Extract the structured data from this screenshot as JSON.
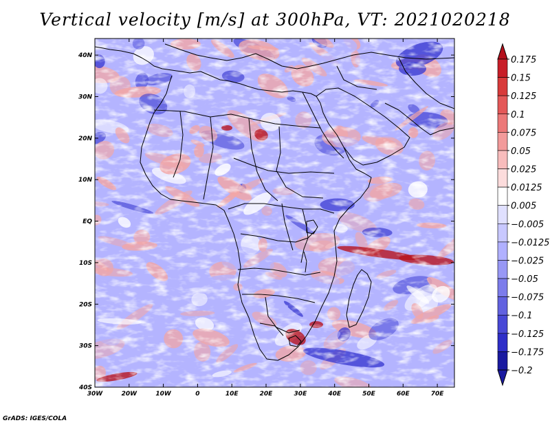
{
  "title": "Vertical velocity [m/s] at 300hPa, VT: 2021020218",
  "credit": "GrADS: IGES/COLA",
  "map": {
    "lon_ticks": [
      "30W",
      "20W",
      "10W",
      "0",
      "10E",
      "20E",
      "30E",
      "40E",
      "50E",
      "60E",
      "70E"
    ],
    "lat_ticks": [
      "40N",
      "30N",
      "20N",
      "10N",
      "EQ",
      "10S",
      "20S",
      "30S",
      "40S"
    ],
    "lon_range": [
      -30,
      75
    ],
    "lat_range": [
      -40,
      44
    ],
    "field_colors": {
      "strong_ascent": "#b8141e",
      "weak_ascent": "#f2a6a6",
      "neutral": "#ffffff",
      "weak_descent": "#b4b4ff",
      "strong_descent": "#3c3cd2"
    }
  },
  "colorbar": {
    "labels": [
      "0.175",
      "0.15",
      "0.125",
      "0.1",
      "0.075",
      "0.05",
      "0.025",
      "0.0125",
      "0.005",
      "−0.005",
      "−0.0125",
      "−0.025",
      "−0.05",
      "−0.075",
      "−0.1",
      "−0.125",
      "−0.175",
      "−0.2"
    ],
    "colors": [
      "#b4101c",
      "#c81e28",
      "#d83a3a",
      "#e45858",
      "#ec7878",
      "#f29a9a",
      "#f8bcbc",
      "#fcdcdc",
      "#ffffff",
      "#e0e0ff",
      "#c8c8ff",
      "#b0b0ff",
      "#9898f5",
      "#7c7ceb",
      "#6262e0",
      "#4848d6",
      "#2e2ec8",
      "#1a1aa0"
    ]
  }
}
